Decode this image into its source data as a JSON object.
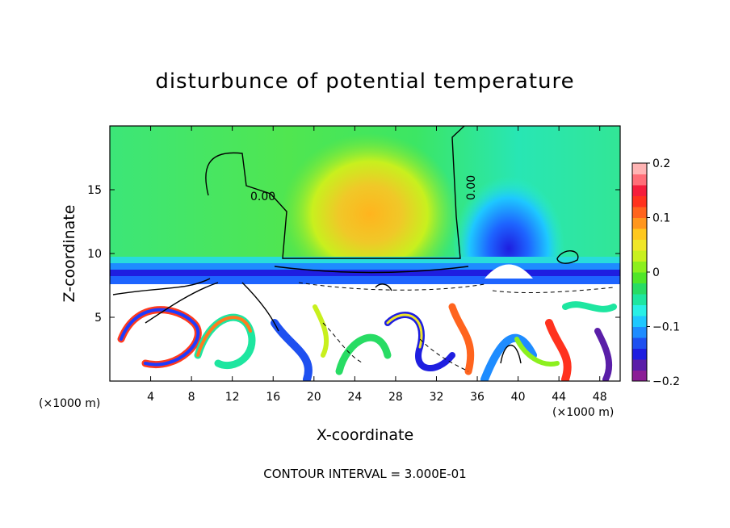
{
  "chart_data": {
    "type": "heatmap",
    "title": "disturbunce of potential temperature",
    "xlabel": "X-coordinate",
    "ylabel": "Z-coordinate",
    "x_unit": "(×1000 m)",
    "xlim": [
      0,
      50
    ],
    "ylim": [
      0,
      20
    ],
    "x_ticks": [
      "4",
      "8",
      "12",
      "16",
      "20",
      "24",
      "28",
      "32",
      "36",
      "40",
      "44",
      "48"
    ],
    "y_ticks": [
      "5",
      "10",
      "15"
    ],
    "contour_labels": [
      "0.00",
      "0.00"
    ],
    "contour_interval": "CONTOUR INTERVAL = 3.000E-01",
    "colorbar": {
      "ticks": [
        "0.2",
        "0.1",
        "0",
        "−0.1",
        "−0.2"
      ],
      "range": [
        -0.2,
        0.2
      ],
      "colors": [
        "#8b1e96",
        "#5a1ea8",
        "#1e1ee0",
        "#1e50f0",
        "#1e8cff",
        "#1ec8ff",
        "#28f0e6",
        "#1ee6a0",
        "#28dc64",
        "#50e628",
        "#8cf01e",
        "#c8f01e",
        "#f0e628",
        "#ffc81e",
        "#ff961e",
        "#ff641e",
        "#ff321e",
        "#f51e3c",
        "#ff6e78",
        "#ffb4b4"
      ]
    }
  }
}
